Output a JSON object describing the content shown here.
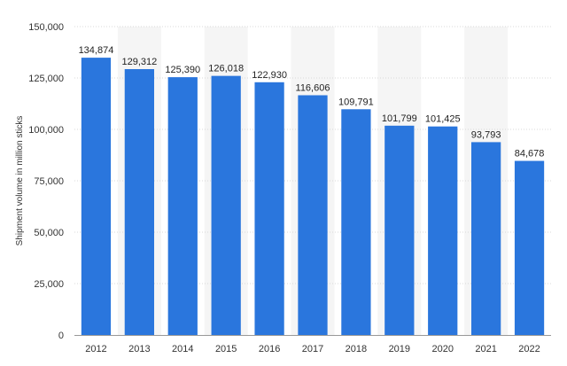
{
  "chart_data": {
    "type": "bar",
    "title": "",
    "xlabel": "",
    "ylabel": "Shipment volume in million sticks",
    "categories": [
      "2012",
      "2013",
      "2014",
      "2015",
      "2016",
      "2017",
      "2018",
      "2019",
      "2020",
      "2021",
      "2022"
    ],
    "values": [
      134874,
      129312,
      125390,
      126018,
      122930,
      116606,
      109791,
      101799,
      101425,
      93793,
      84678
    ],
    "value_labels": [
      "134,874",
      "129,312",
      "125,390",
      "126,018",
      "122,930",
      "116,606",
      "109,791",
      "101,799",
      "101,425",
      "93,793",
      "84,678"
    ],
    "ylim": [
      0,
      150000
    ],
    "yticks": [
      0,
      25000,
      50000,
      75000,
      100000,
      125000,
      150000
    ],
    "ytick_labels": [
      "0",
      "25,000",
      "50,000",
      "75,000",
      "100,000",
      "125,000",
      "150,000"
    ],
    "grid": true,
    "legend": "none",
    "colors": {
      "bar": "#2a76dd",
      "grid": "#d9d9d9",
      "band": "#f5f5f5",
      "axis": "#999999"
    }
  }
}
